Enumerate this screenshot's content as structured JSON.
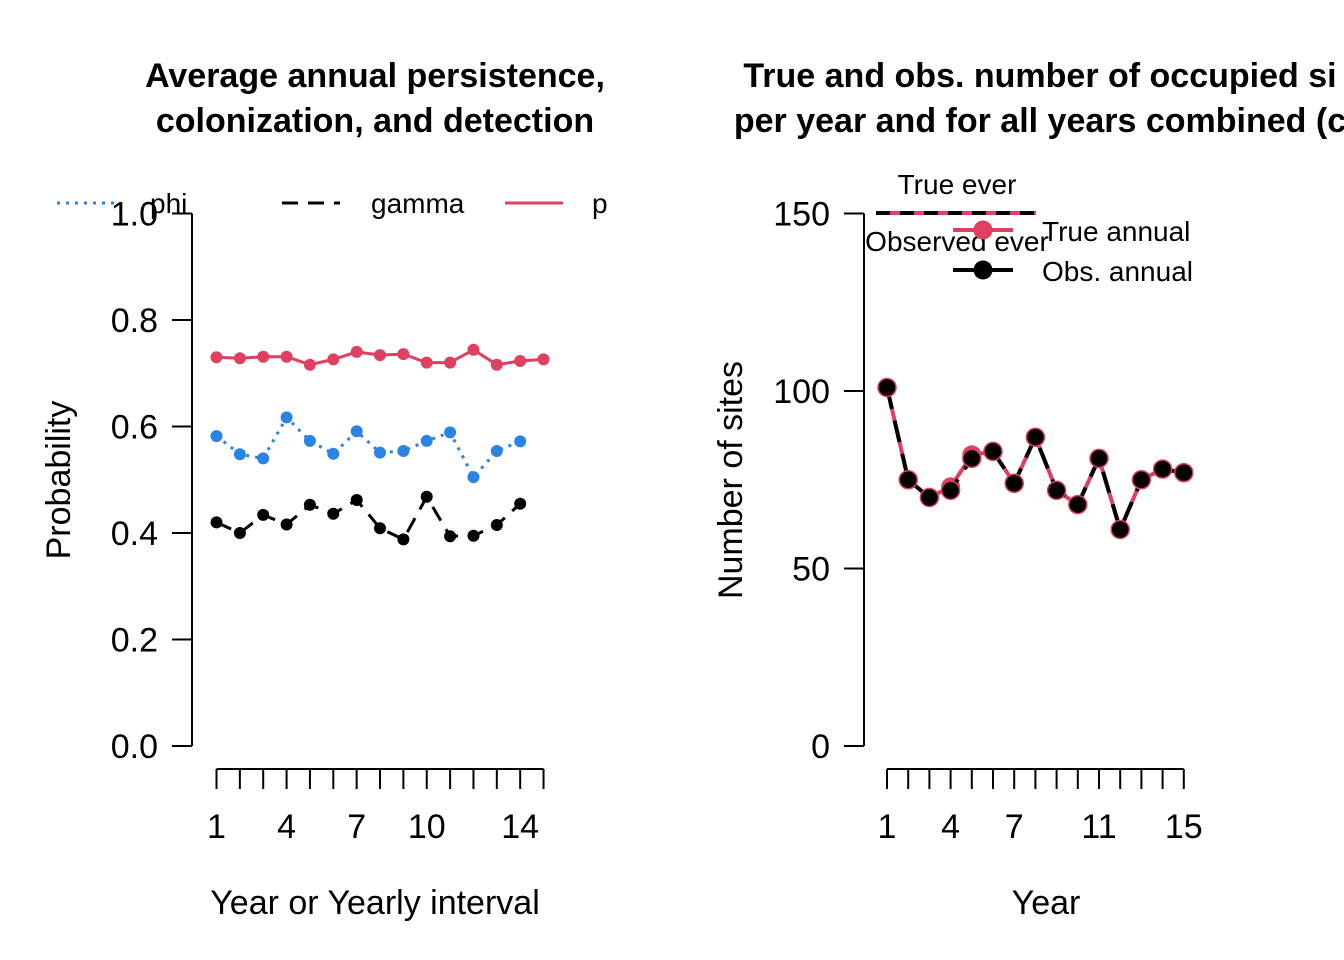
{
  "chart_data": [
    {
      "type": "line",
      "title_line1": "Average annual persistence,",
      "title_line2": "colonization, and detection",
      "xlabel": "Year or Yearly interval",
      "ylabel": "Probability",
      "xlim": [
        1,
        15
      ],
      "ylim": [
        0,
        1
      ],
      "xticks": [
        1,
        2,
        3,
        4,
        5,
        6,
        7,
        8,
        9,
        10,
        11,
        12,
        13,
        14,
        15
      ],
      "xtick_labels": [
        "1",
        "4",
        "7",
        "10",
        "14"
      ],
      "xtick_label_values": [
        1,
        4,
        7,
        10,
        14
      ],
      "yticks": [
        0,
        0.2,
        0.4,
        0.6,
        0.8,
        1.0
      ],
      "ytick_labels": [
        "0.0",
        "0.2",
        "0.4",
        "0.6",
        "0.8",
        "1.0"
      ],
      "legend": {
        "placement": "top",
        "entries": [
          "phi",
          "gamma",
          "p"
        ]
      },
      "series": [
        {
          "name": "phi",
          "color": "#2b84e3",
          "dash": "dotted",
          "x": [
            1,
            2,
            3,
            4,
            5,
            6,
            7,
            8,
            9,
            10,
            11,
            12,
            13,
            14
          ],
          "values": [
            0.582,
            0.548,
            0.54,
            0.617,
            0.573,
            0.549,
            0.591,
            0.551,
            0.554,
            0.573,
            0.589,
            0.505,
            0.554,
            0.572
          ]
        },
        {
          "name": "gamma",
          "color": "#000000",
          "dash": "dashed",
          "x": [
            1,
            2,
            3,
            4,
            5,
            6,
            7,
            8,
            9,
            10,
            11,
            12,
            13,
            14
          ],
          "values": [
            0.42,
            0.4,
            0.434,
            0.416,
            0.453,
            0.436,
            0.462,
            0.409,
            0.388,
            0.468,
            0.394,
            0.395,
            0.415,
            0.455
          ]
        },
        {
          "name": "p",
          "color": "#df3f60",
          "dash": "solid",
          "x": [
            1,
            2,
            3,
            4,
            5,
            6,
            7,
            8,
            9,
            10,
            11,
            12,
            13,
            14,
            15
          ],
          "values": [
            0.73,
            0.728,
            0.731,
            0.731,
            0.716,
            0.726,
            0.74,
            0.734,
            0.736,
            0.72,
            0.72,
            0.744,
            0.716,
            0.723,
            0.726
          ]
        }
      ]
    },
    {
      "type": "line",
      "title_line1": "True and obs. number of occupied si",
      "title_line2": "per year and for all years combined (c",
      "xlabel": "Year",
      "ylabel": "Number of sites",
      "xlim": [
        1,
        15
      ],
      "ylim": [
        0,
        150
      ],
      "xticks": [
        1,
        2,
        3,
        4,
        5,
        6,
        7,
        8,
        9,
        10,
        11,
        12,
        13,
        14,
        15
      ],
      "xtick_labels": [
        "1",
        "4",
        "7",
        "11",
        "15"
      ],
      "xtick_label_values": [
        1,
        4,
        7,
        11,
        15
      ],
      "yticks": [
        0,
        50,
        100,
        150
      ],
      "ytick_labels": [
        "0",
        "50",
        "100",
        "150"
      ],
      "legend": {
        "placement": "top",
        "true_ever": "True ever",
        "observed_ever": "Observed ever",
        "true_annual": "True annual",
        "obs_annual": "Obs. annual"
      },
      "true_ever": 150,
      "observed_ever": 150,
      "series": [
        {
          "name": "True annual",
          "color": "#df3f60",
          "dash": "solid",
          "x": [
            1,
            2,
            3,
            4,
            5,
            6,
            7,
            8,
            9,
            10,
            11,
            12,
            13,
            14,
            15
          ],
          "values": [
            101,
            75,
            70,
            73,
            82,
            83,
            74,
            87,
            72,
            68,
            81,
            61,
            75,
            78,
            77
          ]
        },
        {
          "name": "Obs. annual",
          "color": "#000000",
          "dash": "dashed",
          "x": [
            1,
            2,
            3,
            4,
            5,
            6,
            7,
            8,
            9,
            10,
            11,
            12,
            13,
            14,
            15
          ],
          "values": [
            101,
            75,
            70,
            72,
            81,
            83,
            74,
            87,
            72,
            68,
            81,
            61,
            75,
            78,
            77
          ]
        }
      ]
    }
  ]
}
